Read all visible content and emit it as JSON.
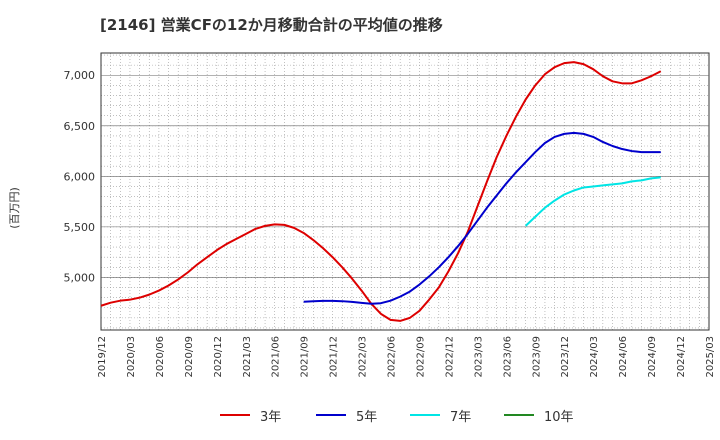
{
  "title": "[2146]  営業CFの12か月移動合計の平均値の推移",
  "ylabel": "(百万円)",
  "chart_data": {
    "type": "line",
    "title": "[2146]  営業CFの12か月移動合計の平均値の推移",
    "ylabel": "(百万円)",
    "xlabel": "",
    "ylim": [
      4480,
      7220
    ],
    "xlim": [
      "2019/12",
      "2025/03"
    ],
    "x_ticks": [
      "2019/12",
      "2020/03",
      "2020/06",
      "2020/09",
      "2020/12",
      "2021/03",
      "2021/06",
      "2021/09",
      "2021/12",
      "2022/03",
      "2022/06",
      "2022/09",
      "2022/12",
      "2023/03",
      "2023/06",
      "2023/09",
      "2023/12",
      "2024/03",
      "2024/06",
      "2024/09",
      "2024/12",
      "2025/03"
    ],
    "y_ticks": [
      {
        "value": 5000,
        "label": "5,000"
      },
      {
        "value": 5500,
        "label": "5,500"
      },
      {
        "value": 6000,
        "label": "6,000"
      },
      {
        "value": 6500,
        "label": "6,500"
      },
      {
        "value": 7000,
        "label": "7,000"
      }
    ],
    "grid": true,
    "legend_position": "bottom",
    "series": [
      {
        "name": "3年",
        "color": "#dd0000",
        "points": [
          [
            "2019/12",
            4720
          ],
          [
            "2020/01",
            4750
          ],
          [
            "2020/02",
            4770
          ],
          [
            "2020/03",
            4780
          ],
          [
            "2020/04",
            4800
          ],
          [
            "2020/05",
            4830
          ],
          [
            "2020/06",
            4870
          ],
          [
            "2020/07",
            4920
          ],
          [
            "2020/08",
            4980
          ],
          [
            "2020/09",
            5050
          ],
          [
            "2020/10",
            5130
          ],
          [
            "2020/11",
            5200
          ],
          [
            "2020/12",
            5270
          ],
          [
            "2020/01",
            null
          ],
          [
            "2021/01",
            5330
          ],
          [
            "2021/02",
            5380
          ],
          [
            "2021/03",
            5430
          ],
          [
            "2021/04",
            5480
          ],
          [
            "2021/05",
            5510
          ],
          [
            "2021/06",
            5525
          ],
          [
            "2021/07",
            5520
          ],
          [
            "2021/08",
            5490
          ],
          [
            "2021/09",
            5440
          ],
          [
            "2021/10",
            5370
          ],
          [
            "2021/11",
            5290
          ],
          [
            "2021/12",
            5200
          ],
          [
            "2022/01",
            5100
          ],
          [
            "2022/02",
            4990
          ],
          [
            "2022/03",
            4870
          ],
          [
            "2022/04",
            4740
          ],
          [
            "2022/05",
            4640
          ],
          [
            "2022/06",
            4580
          ],
          [
            "2022/07",
            4570
          ],
          [
            "2022/08",
            4600
          ],
          [
            "2022/09",
            4670
          ],
          [
            "2022/10",
            4780
          ],
          [
            "2022/11",
            4900
          ],
          [
            "2022/12",
            5060
          ],
          [
            "2023/01",
            5240
          ],
          [
            "2023/02",
            5450
          ],
          [
            "2023/03",
            5700
          ],
          [
            "2023/04",
            5950
          ],
          [
            "2023/05",
            6190
          ],
          [
            "2023/06",
            6400
          ],
          [
            "2023/07",
            6590
          ],
          [
            "2023/08",
            6760
          ],
          [
            "2023/09",
            6900
          ],
          [
            "2023/10",
            7010
          ],
          [
            "2023/11",
            7080
          ],
          [
            "2023/12",
            7120
          ],
          [
            "2024/01",
            7130
          ],
          [
            "2024/02",
            7110
          ],
          [
            "2024/03",
            7060
          ],
          [
            "2024/04",
            6990
          ],
          [
            "2024/05",
            6940
          ],
          [
            "2024/06",
            6920
          ],
          [
            "2024/07",
            6920
          ],
          [
            "2024/08",
            6950
          ],
          [
            "2024/09",
            6990
          ],
          [
            "2024/10",
            7040
          ]
        ]
      },
      {
        "name": "5年",
        "color": "#0000cc",
        "points": [
          [
            "2021/09",
            4760
          ],
          [
            "2021/10",
            4765
          ],
          [
            "2021/11",
            4768
          ],
          [
            "2021/12",
            4768
          ],
          [
            "2022/01",
            4765
          ],
          [
            "2022/02",
            4758
          ],
          [
            "2022/03",
            4748
          ],
          [
            "2022/04",
            4740
          ],
          [
            "2022/05",
            4745
          ],
          [
            "2022/06",
            4770
          ],
          [
            "2022/07",
            4810
          ],
          [
            "2022/08",
            4860
          ],
          [
            "2022/09",
            4930
          ],
          [
            "2022/10",
            5010
          ],
          [
            "2022/11",
            5100
          ],
          [
            "2022/12",
            5200
          ],
          [
            "2023/01",
            5310
          ],
          [
            "2023/02",
            5430
          ],
          [
            "2023/03",
            5560
          ],
          [
            "2023/04",
            5690
          ],
          [
            "2023/05",
            5810
          ],
          [
            "2023/06",
            5930
          ],
          [
            "2023/07",
            6040
          ],
          [
            "2023/08",
            6140
          ],
          [
            "2023/09",
            6240
          ],
          [
            "2023/10",
            6330
          ],
          [
            "2023/11",
            6390
          ],
          [
            "2023/12",
            6420
          ],
          [
            "2024/01",
            6430
          ],
          [
            "2024/02",
            6420
          ],
          [
            "2024/03",
            6390
          ],
          [
            "2024/04",
            6340
          ],
          [
            "2024/05",
            6300
          ],
          [
            "2024/06",
            6270
          ],
          [
            "2024/07",
            6250
          ],
          [
            "2024/08",
            6240
          ],
          [
            "2024/09",
            6240
          ],
          [
            "2024/10",
            6240
          ]
        ]
      },
      {
        "name": "7年",
        "color": "#00e5e5",
        "points": [
          [
            "2023/08",
            5510
          ],
          [
            "2023/09",
            5600
          ],
          [
            "2023/10",
            5690
          ],
          [
            "2023/11",
            5760
          ],
          [
            "2023/12",
            5820
          ],
          [
            "2024/01",
            5860
          ],
          [
            "2024/02",
            5890
          ],
          [
            "2024/03",
            5900
          ],
          [
            "2024/04",
            5910
          ],
          [
            "2024/05",
            5920
          ],
          [
            "2024/06",
            5930
          ],
          [
            "2024/07",
            5950
          ],
          [
            "2024/08",
            5960
          ],
          [
            "2024/09",
            5980
          ],
          [
            "2024/10",
            5990
          ]
        ]
      },
      {
        "name": "10年",
        "color": "#228822",
        "points": []
      }
    ]
  }
}
